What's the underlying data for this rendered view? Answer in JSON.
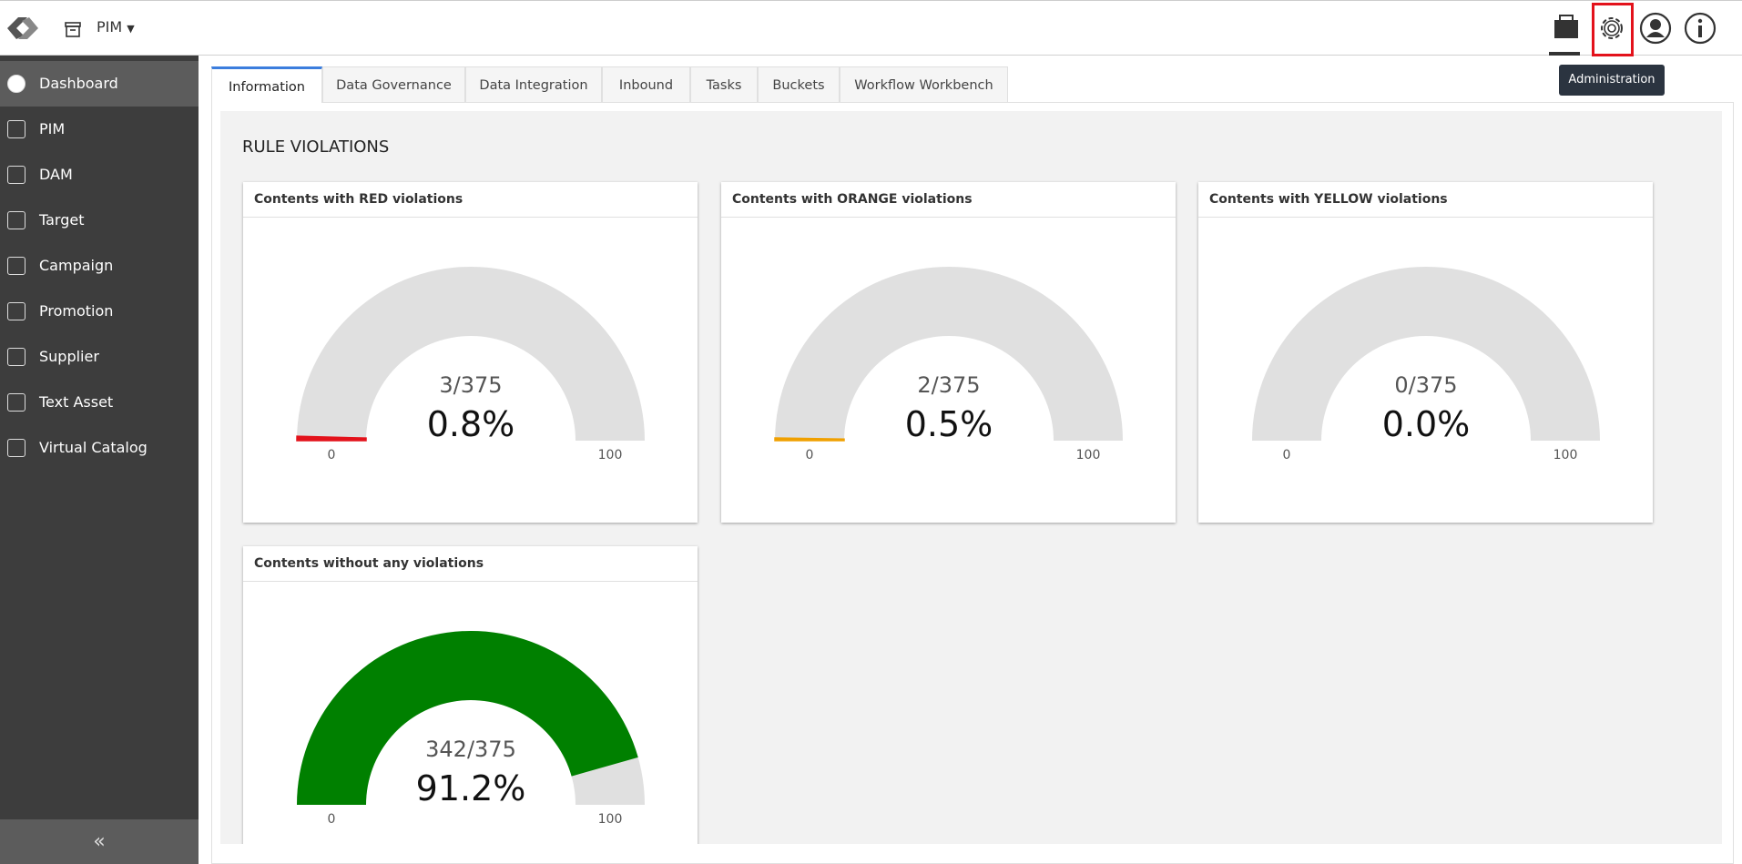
{
  "header": {
    "module": "PIM",
    "tooltip": "Administration"
  },
  "sidebar": {
    "items": [
      "Dashboard",
      "PIM",
      "DAM",
      "Target",
      "Campaign",
      "Promotion",
      "Supplier",
      "Text Asset",
      "Virtual Catalog"
    ]
  },
  "tabs": [
    "Information",
    "Data Governance",
    "Data Integration",
    "Inbound",
    "Tasks",
    "Buckets",
    "Workflow Workbench"
  ],
  "section_title": "RULE VIOLATIONS",
  "gauges": [
    {
      "title": "Contents with RED violations",
      "count_label": "3/375",
      "value": 0.8,
      "value_label": "0.8%",
      "min": 0,
      "max": 100,
      "color": "#e3121b"
    },
    {
      "title": "Contents with ORANGE violations",
      "count_label": "2/375",
      "value": 0.5,
      "value_label": "0.5%",
      "min": 0,
      "max": 100,
      "color": "#f0a000"
    },
    {
      "title": "Contents with YELLOW violations",
      "count_label": "0/375",
      "value": 0.0,
      "value_label": "0.0%",
      "min": 0,
      "max": 100,
      "color": "#ffd700"
    },
    {
      "title": "Contents without any violations",
      "count_label": "342/375",
      "value": 91.2,
      "value_label": "91.2%",
      "min": 0,
      "max": 100,
      "color": "#008000"
    }
  ]
}
